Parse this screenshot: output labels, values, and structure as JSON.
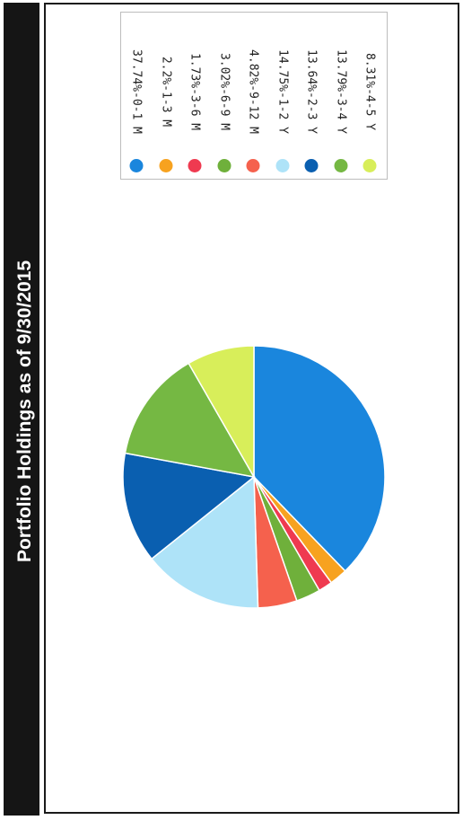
{
  "title": "Portfolio Holdings as of 9/30/2015",
  "chart_data": {
    "type": "pie",
    "title": "Portfolio Holdings as of 9/30/2015",
    "legend_position": "top",
    "slices": [
      {
        "label": "37.74%-0-1 M",
        "value": 37.74,
        "color": "#1a86dd"
      },
      {
        "label": "2.2%-1-3 M",
        "value": 2.2,
        "color": "#f7a21f"
      },
      {
        "label": "1.73%-3-6 M",
        "value": 1.73,
        "color": "#ef3a50"
      },
      {
        "label": "3.02%-6-9 M",
        "value": 3.02,
        "color": "#6fb03b"
      },
      {
        "label": "4.82%-9-12 M",
        "value": 4.82,
        "color": "#f5614d"
      },
      {
        "label": "14.75%-1-2 Y",
        "value": 14.75,
        "color": "#aee3f8"
      },
      {
        "label": "13.64%-2-3 Y",
        "value": 13.64,
        "color": "#0a5fb0"
      },
      {
        "label": "13.79%-3-4 Y",
        "value": 13.79,
        "color": "#75b843"
      },
      {
        "label": "8.31%-4-5 Y",
        "value": 8.31,
        "color": "#d8ee5a"
      }
    ]
  }
}
